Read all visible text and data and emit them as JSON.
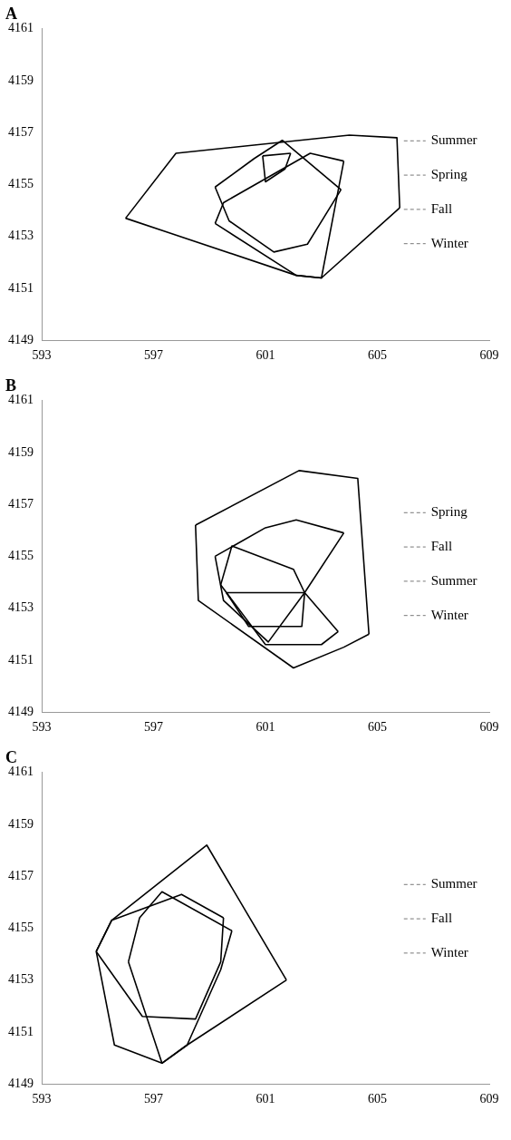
{
  "chart_data": [
    {
      "type": "line",
      "title": "A",
      "xlim": [
        593,
        609
      ],
      "ylim": [
        4149,
        4161
      ],
      "xticks": [
        593,
        597,
        601,
        605,
        609
      ],
      "yticks": [
        4149,
        4151,
        4153,
        4155,
        4157,
        4159,
        4161
      ],
      "grid": false,
      "legend": false,
      "marker": "none",
      "line_style": "solid",
      "series": [
        {
          "color": "#000000",
          "x": [
            596.0,
            597.8,
            604.0,
            605.7,
            605.8
          ],
          "values": [
            4153.7,
            4156.2,
            4156.9,
            4156.8,
            4154.1
          ]
        },
        {
          "color": "#000000",
          "x": [
            596.0,
            602.1,
            603.0,
            605.8
          ],
          "values": [
            4153.7,
            4151.5,
            4151.4,
            4154.1
          ]
        },
        {
          "color": "#000000",
          "x": [
            599.2,
            600.6,
            601.6,
            603.7
          ],
          "values": [
            4154.9,
            4156.0,
            4156.7,
            4154.8
          ]
        },
        {
          "color": "#000000",
          "x": [
            599.2,
            599.7,
            601.3,
            602.5,
            603.7
          ],
          "values": [
            4154.9,
            4153.6,
            4152.4,
            4152.7,
            4154.8
          ]
        },
        {
          "color": "#000000",
          "x": [
            599.2,
            599.5,
            602.6,
            603.8
          ],
          "values": [
            4153.5,
            4154.3,
            4156.2,
            4155.9
          ]
        },
        {
          "color": "#000000",
          "x": [
            599.2,
            602.1,
            603.0,
            603.8
          ],
          "values": [
            4153.5,
            4151.5,
            4151.4,
            4155.9
          ]
        },
        {
          "color": "#000000",
          "x": [
            600.9,
            601.9
          ],
          "values": [
            4156.1,
            4156.2
          ]
        },
        {
          "color": "#000000",
          "x": [
            600.9,
            601.0,
            601.7,
            601.9
          ],
          "values": [
            4156.1,
            4155.1,
            4155.6,
            4156.2
          ]
        }
      ],
      "annotations": [
        "Summer",
        "Spring",
        "Fall",
        "Winter"
      ]
    },
    {
      "type": "line",
      "title": "B",
      "xlim": [
        593,
        609
      ],
      "ylim": [
        4149,
        4161
      ],
      "xticks": [
        593,
        597,
        601,
        605,
        609
      ],
      "yticks": [
        4149,
        4151,
        4153,
        4155,
        4157,
        4159,
        4161
      ],
      "grid": false,
      "legend": false,
      "marker": "none",
      "line_style": "solid",
      "series": [
        {
          "color": "#000000",
          "x": [
            598.5,
            602.2,
            604.3,
            604.7
          ],
          "values": [
            4156.2,
            4158.3,
            4158.0,
            4152.0
          ]
        },
        {
          "color": "#000000",
          "x": [
            598.5,
            598.6,
            602.0,
            603.8,
            604.7
          ],
          "values": [
            4156.2,
            4153.3,
            4150.7,
            4151.5,
            4152.0
          ]
        },
        {
          "color": "#000000",
          "x": [
            599.2,
            601.0,
            602.1,
            603.8
          ],
          "values": [
            4155.0,
            4156.1,
            4156.4,
            4155.9
          ]
        },
        {
          "color": "#000000",
          "x": [
            599.2,
            599.5,
            601.1,
            602.4,
            603.8
          ],
          "values": [
            4155.0,
            4153.3,
            4151.7,
            4153.6,
            4155.9
          ]
        },
        {
          "color": "#000000",
          "x": [
            599.4,
            599.8,
            602.0,
            602.4,
            603.6
          ],
          "values": [
            4153.9,
            4155.4,
            4154.5,
            4153.6,
            4152.1
          ]
        },
        {
          "color": "#000000",
          "x": [
            599.4,
            601.0,
            603.0,
            603.6
          ],
          "values": [
            4153.9,
            4151.6,
            4151.6,
            4152.1
          ]
        },
        {
          "color": "#000000",
          "x": [
            599.6,
            602.4
          ],
          "values": [
            4153.6,
            4153.6
          ]
        },
        {
          "color": "#000000",
          "x": [
            599.6,
            600.4,
            602.3,
            602.4
          ],
          "values": [
            4153.6,
            4152.3,
            4152.3,
            4153.6
          ]
        }
      ],
      "annotations": [
        "Spring",
        "Fall",
        "Summer",
        "Winter"
      ]
    },
    {
      "type": "line",
      "title": "C",
      "xlim": [
        593,
        609
      ],
      "ylim": [
        4149,
        4161
      ],
      "xticks": [
        593,
        597,
        601,
        605,
        609
      ],
      "yticks": [
        4149,
        4151,
        4153,
        4155,
        4157,
        4159,
        4161
      ],
      "grid": false,
      "legend": false,
      "marker": "none",
      "line_style": "solid",
      "series": [
        {
          "color": "#000000",
          "x": [
            594.95,
            595.5,
            598.9,
            601.75
          ],
          "values": [
            4154.1,
            4155.3,
            4158.2,
            4153.0
          ]
        },
        {
          "color": "#000000",
          "x": [
            594.95,
            595.6,
            597.3,
            598.2,
            601.75
          ],
          "values": [
            4154.1,
            4150.5,
            4149.8,
            4150.5,
            4153.0
          ]
        },
        {
          "color": "#000000",
          "x": [
            594.95,
            595.5,
            598.0,
            599.5
          ],
          "values": [
            4154.1,
            4155.3,
            4156.3,
            4155.4
          ]
        },
        {
          "color": "#000000",
          "x": [
            594.95,
            596.6,
            598.5,
            599.4,
            599.5
          ],
          "values": [
            4154.1,
            4151.6,
            4151.5,
            4153.7,
            4155.4
          ]
        },
        {
          "color": "#000000",
          "x": [
            596.1,
            596.5,
            597.3,
            599.8
          ],
          "values": [
            4153.7,
            4155.4,
            4156.4,
            4154.9
          ]
        },
        {
          "color": "#000000",
          "x": [
            596.1,
            597.3,
            598.2,
            599.4,
            599.8
          ],
          "values": [
            4153.7,
            4149.8,
            4150.5,
            4153.4,
            4154.9
          ]
        }
      ],
      "annotations": [
        "Summer",
        "Fall",
        "Winter"
      ]
    }
  ]
}
